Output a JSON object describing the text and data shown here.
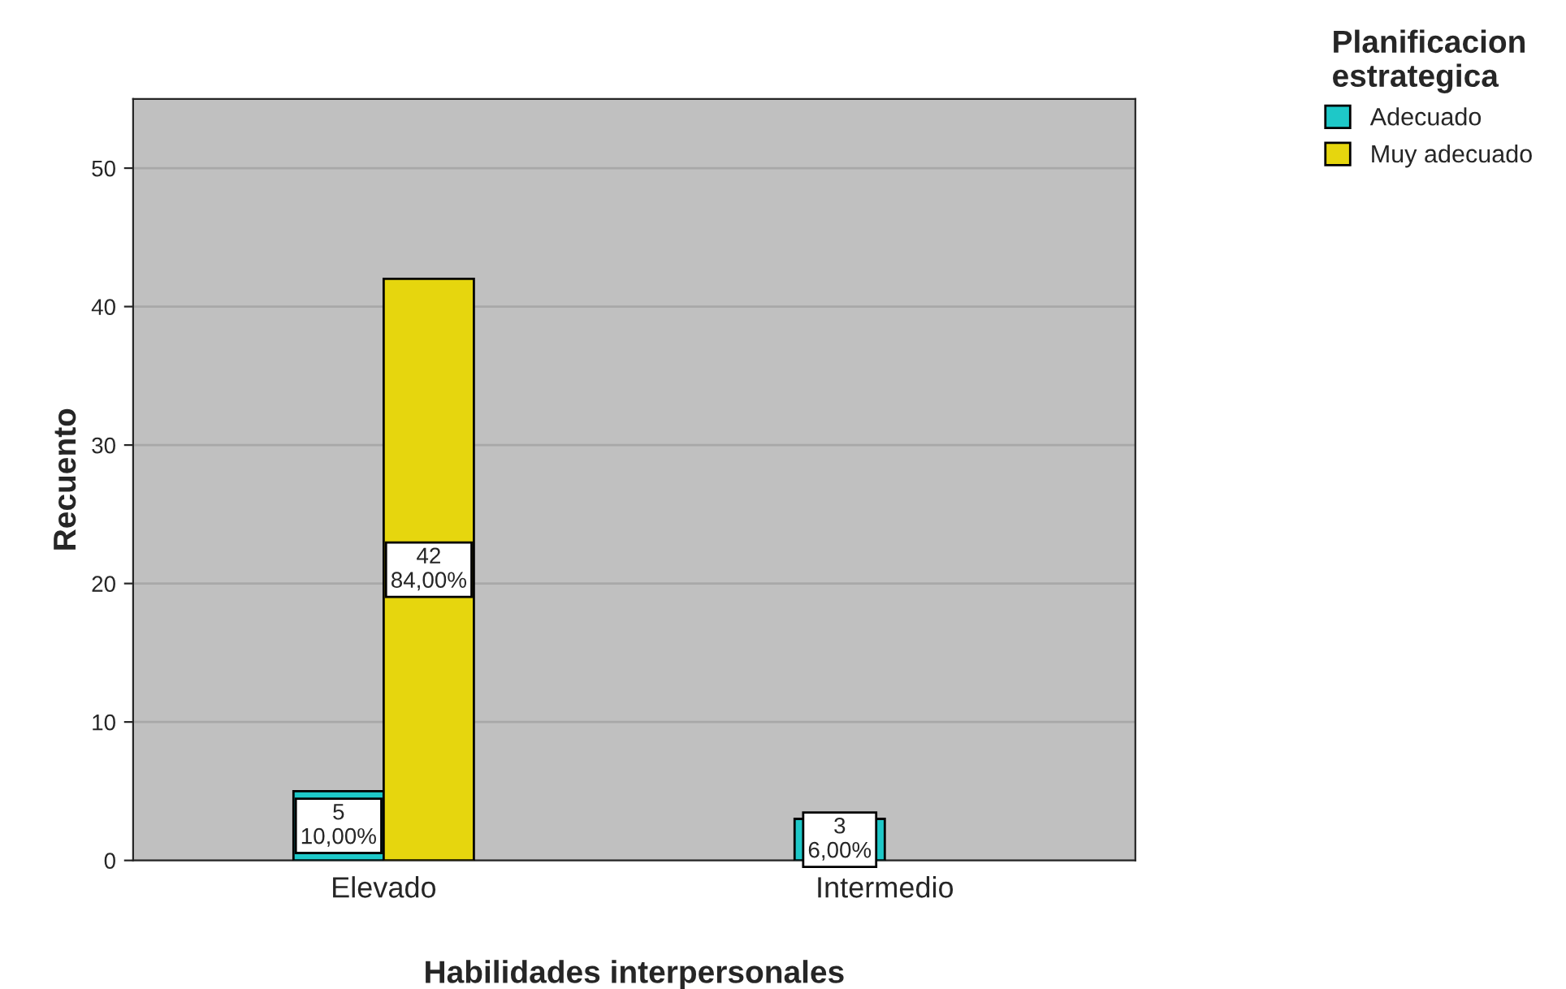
{
  "chart_data": {
    "type": "bar",
    "xlabel": "Habilidades interpersonales",
    "ylabel": "Recuento",
    "legend_title": "Planificacion\nestrategica",
    "categories": [
      "Elevado",
      "Intermedio"
    ],
    "series": [
      {
        "name": "Adecuado",
        "color": "#1ec8c8",
        "values": [
          5,
          3
        ],
        "value_labels": [
          "5\n10,00%",
          "3\n6,00%"
        ]
      },
      {
        "name": "Muy adecuado",
        "color": "#e6d60e",
        "values": [
          42,
          null
        ],
        "value_labels": [
          "42\n84,00%",
          null
        ]
      }
    ],
    "ylim": [
      0,
      55
    ],
    "yticks": [
      0,
      10,
      20,
      30,
      40,
      50
    ],
    "grid": "y",
    "legend": "top right"
  }
}
